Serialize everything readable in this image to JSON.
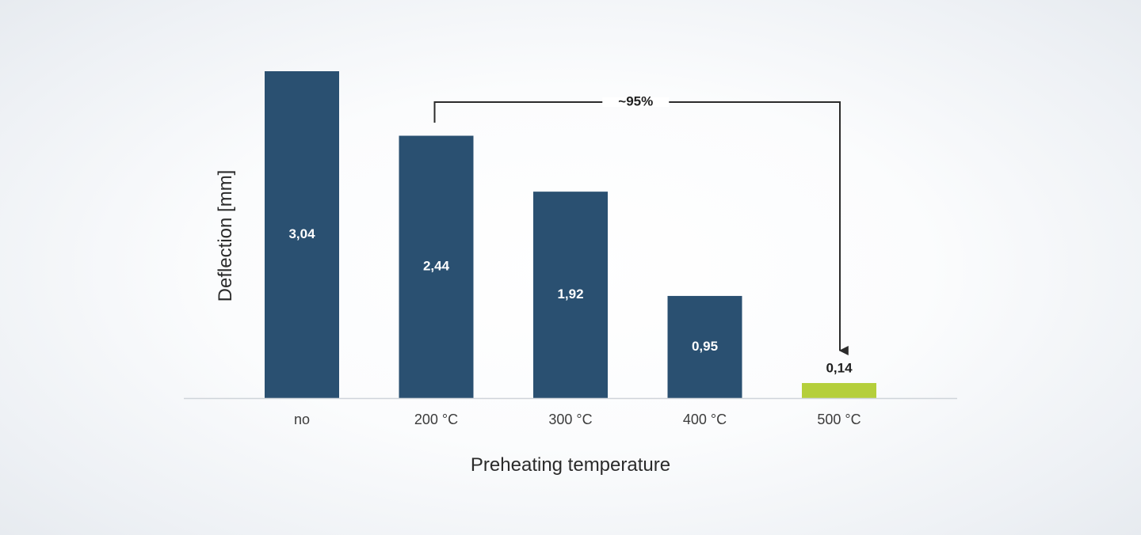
{
  "chart_data": {
    "type": "bar",
    "categories": [
      "no",
      "200 °C",
      "300 °C",
      "400 °C",
      "500 °C"
    ],
    "values": [
      3.04,
      2.44,
      1.92,
      0.95,
      0.14
    ],
    "value_labels": [
      "3,04",
      "2,44",
      "1,92",
      "0,95",
      "0,14"
    ],
    "xlabel": "Preheating temperature",
    "ylabel": "Deflection [mm]",
    "ylim": [
      0,
      3.04
    ],
    "grid": false,
    "legend": "none",
    "annotation": {
      "label": "~95%",
      "from_category": "200 °C",
      "to_category": "500 °C"
    },
    "colors": {
      "bar": "#2a5071",
      "highlight_bar": "#b5cf3b",
      "label_inside": "#ffffff",
      "label_outside": "#1f1f1f",
      "axis": "#cfd4da",
      "annotation_line": "#2b2b2b"
    },
    "highlight_index": 4
  }
}
